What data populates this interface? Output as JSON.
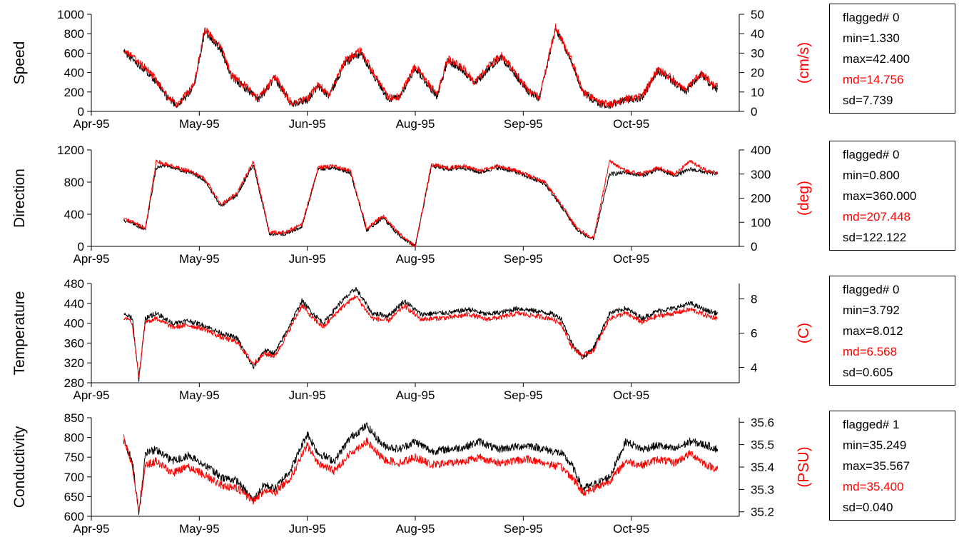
{
  "colors": {
    "primary": "#000000",
    "secondary": "#ff0000",
    "axis": "#000000"
  },
  "x_ticks": [
    "Apr-95",
    "May-95",
    "Jun-95",
    "Aug-95",
    "Sep-95",
    "Oct-95"
  ],
  "panels": [
    {
      "ylabel": "Speed",
      "y_ticks": [
        "0",
        "200",
        "400",
        "600",
        "800",
        "1000"
      ],
      "r_unit": "(cm/s)",
      "r_ticks": [
        "0",
        "10",
        "20",
        "30",
        "40",
        "50"
      ],
      "stats": {
        "flagged": "flagged# 0",
        "min": "min=1.330",
        "max": "max=42.400",
        "md": "md=14.756",
        "sd": "sd=7.739"
      }
    },
    {
      "ylabel": "Direction",
      "y_ticks": [
        "0",
        "400",
        "800",
        "1200"
      ],
      "r_unit": "(deg)",
      "r_ticks": [
        "0",
        "100",
        "200",
        "300",
        "400"
      ],
      "stats": {
        "flagged": "flagged# 0",
        "min": "min=0.800",
        "max": "max=360.000",
        "md": "md=207.448",
        "sd": "sd=122.122"
      }
    },
    {
      "ylabel": "Temperature",
      "y_ticks": [
        "280",
        "320",
        "360",
        "400",
        "440",
        "480"
      ],
      "r_unit": "(C)",
      "r_ticks": [
        "4",
        "6",
        "8"
      ],
      "stats": {
        "flagged": "flagged# 0",
        "min": "min=3.792",
        "max": "max=8.012",
        "md": "md=6.568",
        "sd": "sd=0.605"
      }
    },
    {
      "ylabel": "Conductivity",
      "y_ticks": [
        "600",
        "650",
        "700",
        "750",
        "800",
        "850"
      ],
      "r_unit": "(PSU)",
      "r_ticks": [
        "35.2",
        "35.3",
        "35.4",
        "35.5",
        "35.6"
      ],
      "stats": {
        "flagged": "flagged# 1",
        "min": "min=35.249",
        "max": "max=35.567",
        "md": "md=35.400",
        "sd": "sd=0.040"
      }
    }
  ],
  "chart_data": [
    {
      "type": "line",
      "ylabel": "Speed",
      "ylim": [
        0,
        1000
      ],
      "y2label": "(cm/s)",
      "y2lim": [
        0,
        50
      ],
      "xlim": [
        "Apr-95",
        "Oct-95"
      ],
      "series": [
        {
          "color": "#000000",
          "axis": "left",
          "x": [
            0.3,
            0.4,
            0.55,
            0.7,
            0.8,
            0.95,
            1.05,
            1.2,
            1.3,
            1.45,
            1.55,
            1.7,
            1.85,
            2.0,
            2.1,
            2.2,
            2.35,
            2.5,
            2.6,
            2.75,
            2.85,
            3.0,
            3.1,
            3.2,
            3.3,
            3.45,
            3.55,
            3.7,
            3.8,
            3.95,
            4.05,
            4.15,
            4.3,
            4.45,
            4.55,
            4.7,
            4.8,
            4.95,
            5.1,
            5.25,
            5.4,
            5.5,
            5.65,
            5.75,
            5.8
          ],
          "y": [
            620,
            520,
            380,
            150,
            60,
            250,
            820,
            640,
            350,
            220,
            120,
            340,
            80,
            120,
            260,
            160,
            500,
            600,
            400,
            130,
            140,
            450,
            300,
            160,
            520,
            420,
            280,
            470,
            560,
            340,
            200,
            130,
            850,
            500,
            200,
            80,
            60,
            120,
            140,
            420,
            300,
            200,
            380,
            260,
            230
          ]
        },
        {
          "color": "#ff0000",
          "axis": "left",
          "x": [
            0.3,
            0.4,
            0.55,
            0.7,
            0.8,
            0.95,
            1.05,
            1.2,
            1.3,
            1.45,
            1.55,
            1.7,
            1.85,
            2.0,
            2.1,
            2.2,
            2.35,
            2.5,
            2.6,
            2.75,
            2.85,
            3.0,
            3.1,
            3.2,
            3.3,
            3.45,
            3.55,
            3.7,
            3.8,
            3.95,
            4.05,
            4.15,
            4.3,
            4.45,
            4.55,
            4.7,
            4.8,
            4.95,
            5.1,
            5.25,
            5.4,
            5.5,
            5.65,
            5.75,
            5.8
          ],
          "y": [
            640,
            540,
            400,
            160,
            70,
            270,
            850,
            660,
            370,
            240,
            130,
            360,
            90,
            130,
            280,
            170,
            520,
            630,
            420,
            140,
            150,
            470,
            320,
            170,
            540,
            440,
            300,
            490,
            580,
            360,
            220,
            140,
            870,
            520,
            210,
            90,
            70,
            130,
            160,
            440,
            320,
            210,
            400,
            280,
            250
          ]
        }
      ]
    },
    {
      "type": "line",
      "ylabel": "Direction",
      "ylim": [
        0,
        1200
      ],
      "y2label": "(deg)",
      "y2lim": [
        0,
        400
      ],
      "xlim": [
        "Apr-95",
        "Oct-95"
      ],
      "series": [
        {
          "color": "#000000",
          "axis": "left",
          "x": [
            0.3,
            0.4,
            0.5,
            0.6,
            0.7,
            0.8,
            0.95,
            1.05,
            1.2,
            1.35,
            1.5,
            1.65,
            1.8,
            1.95,
            2.1,
            2.25,
            2.4,
            2.55,
            2.7,
            2.85,
            3.0,
            3.15,
            3.3,
            3.45,
            3.6,
            3.75,
            3.9,
            4.05,
            4.2,
            4.35,
            4.5,
            4.65,
            4.8,
            4.95,
            5.1,
            5.25,
            5.4,
            5.55,
            5.7,
            5.8
          ],
          "y": [
            320,
            280,
            200,
            980,
            1000,
            960,
            900,
            820,
            500,
            640,
            1020,
            150,
            160,
            250,
            960,
            980,
            920,
            200,
            360,
            140,
            0,
            1000,
            960,
            980,
            920,
            980,
            940,
            860,
            780,
            500,
            200,
            80,
            900,
            920,
            880,
            960,
            880,
            960,
            920,
            900
          ]
        },
        {
          "color": "#ff0000",
          "axis": "left",
          "x": [
            0.3,
            0.4,
            0.5,
            0.6,
            0.7,
            0.8,
            0.95,
            1.05,
            1.2,
            1.35,
            1.5,
            1.65,
            1.8,
            1.95,
            2.1,
            2.25,
            2.4,
            2.55,
            2.7,
            2.85,
            3.0,
            3.15,
            3.3,
            3.45,
            3.6,
            3.75,
            3.9,
            4.05,
            4.2,
            4.35,
            4.5,
            4.65,
            4.8,
            4.95,
            5.1,
            5.25,
            5.4,
            5.55,
            5.7,
            5.8
          ],
          "y": [
            340,
            300,
            220,
            1060,
            1020,
            980,
            920,
            840,
            520,
            660,
            1060,
            170,
            180,
            270,
            980,
            1000,
            940,
            220,
            380,
            160,
            0,
            1020,
            980,
            1000,
            940,
            1000,
            960,
            880,
            800,
            520,
            220,
            100,
            1060,
            940,
            900,
            980,
            900,
            1060,
            940,
            920
          ]
        }
      ]
    },
    {
      "type": "line",
      "ylabel": "Temperature",
      "ylim": [
        280,
        480
      ],
      "y2label": "(C)",
      "y2lim": [
        3.1,
        8.9
      ],
      "xlim": [
        "Apr-95",
        "Oct-95"
      ],
      "series": [
        {
          "color": "#000000",
          "axis": "left",
          "x": [
            0.3,
            0.38,
            0.44,
            0.5,
            0.6,
            0.75,
            0.9,
            1.05,
            1.2,
            1.35,
            1.5,
            1.6,
            1.7,
            1.8,
            1.95,
            2.05,
            2.15,
            2.3,
            2.45,
            2.6,
            2.75,
            2.9,
            3.05,
            3.2,
            3.35,
            3.5,
            3.65,
            3.8,
            3.95,
            4.1,
            4.25,
            4.35,
            4.45,
            4.55,
            4.65,
            4.8,
            4.95,
            5.1,
            5.25,
            5.4,
            5.55,
            5.7,
            5.8
          ],
          "y": [
            420,
            410,
            285,
            410,
            420,
            400,
            405,
            395,
            380,
            370,
            310,
            345,
            340,
            380,
            445,
            420,
            400,
            440,
            470,
            420,
            415,
            445,
            418,
            420,
            422,
            428,
            418,
            422,
            430,
            425,
            420,
            410,
            360,
            330,
            350,
            420,
            430,
            410,
            425,
            430,
            440,
            425,
            420
          ]
        },
        {
          "color": "#ff0000",
          "axis": "left",
          "x": [
            0.3,
            0.38,
            0.44,
            0.5,
            0.6,
            0.75,
            0.9,
            1.05,
            1.2,
            1.35,
            1.5,
            1.6,
            1.7,
            1.8,
            1.95,
            2.05,
            2.15,
            2.3,
            2.45,
            2.6,
            2.75,
            2.9,
            3.05,
            3.2,
            3.35,
            3.5,
            3.65,
            3.8,
            3.95,
            4.1,
            4.25,
            4.35,
            4.45,
            4.55,
            4.65,
            4.8,
            4.95,
            5.1,
            5.25,
            5.4,
            5.55,
            5.7,
            5.8
          ],
          "y": [
            412,
            400,
            292,
            402,
            410,
            392,
            396,
            388,
            372,
            362,
            318,
            338,
            334,
            372,
            436,
            410,
            392,
            428,
            455,
            410,
            405,
            435,
            408,
            410,
            412,
            418,
            408,
            412,
            420,
            415,
            410,
            400,
            352,
            335,
            345,
            410,
            420,
            402,
            415,
            420,
            428,
            415,
            410
          ]
        }
      ]
    },
    {
      "type": "line",
      "ylabel": "Conductivity",
      "ylim": [
        600,
        850
      ],
      "y2label": "(PSU)",
      "y2lim": [
        35.18,
        35.62
      ],
      "xlim": [
        "Apr-95",
        "Oct-95"
      ],
      "series": [
        {
          "color": "#000000",
          "axis": "left",
          "x": [
            0.3,
            0.38,
            0.44,
            0.5,
            0.6,
            0.75,
            0.9,
            1.05,
            1.2,
            1.35,
            1.5,
            1.6,
            1.7,
            1.85,
            2.0,
            2.1,
            2.25,
            2.4,
            2.55,
            2.7,
            2.85,
            3.0,
            3.15,
            3.3,
            3.45,
            3.6,
            3.75,
            3.9,
            4.05,
            4.2,
            4.35,
            4.45,
            4.55,
            4.65,
            4.8,
            4.95,
            5.1,
            5.25,
            5.4,
            5.55,
            5.7,
            5.8
          ],
          "y": [
            790,
            740,
            605,
            760,
            770,
            740,
            755,
            730,
            700,
            690,
            640,
            680,
            670,
            720,
            810,
            760,
            740,
            800,
            830,
            780,
            770,
            790,
            765,
            770,
            775,
            790,
            770,
            775,
            780,
            770,
            760,
            730,
            670,
            680,
            700,
            790,
            770,
            780,
            770,
            790,
            780,
            770
          ]
        },
        {
          "color": "#ff0000",
          "axis": "left",
          "x": [
            0.3,
            0.38,
            0.44,
            0.5,
            0.6,
            0.75,
            0.9,
            1.05,
            1.2,
            1.35,
            1.5,
            1.6,
            1.7,
            1.85,
            2.0,
            2.1,
            2.25,
            2.4,
            2.55,
            2.7,
            2.85,
            3.0,
            3.15,
            3.3,
            3.45,
            3.6,
            3.75,
            3.9,
            4.05,
            4.2,
            4.35,
            4.45,
            4.55,
            4.65,
            4.8,
            4.95,
            5.1,
            5.25,
            5.4,
            5.55,
            5.7,
            5.8
          ],
          "y": [
            800,
            730,
            610,
            730,
            740,
            710,
            725,
            705,
            680,
            670,
            640,
            665,
            660,
            700,
            780,
            735,
            715,
            760,
            790,
            745,
            735,
            750,
            730,
            735,
            740,
            750,
            735,
            740,
            745,
            735,
            725,
            700,
            660,
            670,
            690,
            740,
            730,
            745,
            735,
            760,
            730,
            720
          ]
        }
      ]
    }
  ]
}
